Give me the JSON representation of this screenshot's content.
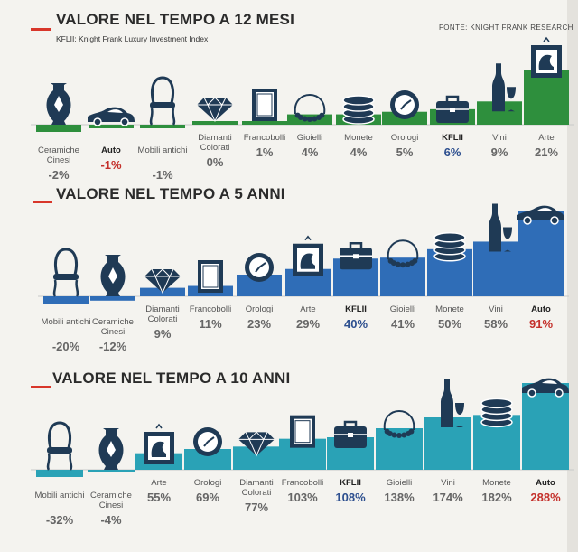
{
  "source": "FONTE: KNIGHT FRANK RESEARCH",
  "colors": {
    "section_12m": "#2e8f3d",
    "section_5y": "#2f6db7",
    "section_10y": "#2aa2b6",
    "icon": "#1f3a55",
    "accent_red": "#c4302b",
    "accent_blue": "#2d4f8f",
    "dash_red": "#d8362a"
  },
  "chart_data": [
    {
      "type": "bar",
      "title": "VALORE NEL TEMPO A 12 MESI",
      "subtitle": "KFLII: Knight Frank Luxury Investment Index",
      "categories": [
        "Ceramiche Cinesi",
        "Auto",
        "Mobili antichi",
        "Diamanti Colorati",
        "Francobolli",
        "Gioielli",
        "Monete",
        "Orologi",
        "KFLII",
        "Vini",
        "Arte"
      ],
      "values": [
        -2,
        -1,
        -1,
        0,
        1,
        4,
        4,
        5,
        6,
        9,
        21
      ],
      "labels": [
        "-2%",
        "-1%",
        "-1%",
        "0%",
        "1%",
        "4%",
        "4%",
        "5%",
        "6%",
        "9%",
        "21%"
      ],
      "icons": [
        "vase-icon",
        "car-icon",
        "chair-icon",
        "diamond-icon",
        "stamp-icon",
        "necklace-icon",
        "coins-icon",
        "watch-icon",
        "briefcase-icon",
        "wine-icon",
        "painting-icon"
      ],
      "highlight": {
        "Auto": "red",
        "KFLII": "blue"
      },
      "bold_categories": [
        "Auto",
        "KFLII"
      ],
      "ylim": [
        -2,
        21
      ]
    },
    {
      "type": "bar",
      "title": "VALORE NEL TEMPO A 5 ANNI",
      "categories": [
        "Mobili antichi",
        "Ceramiche Cinesi",
        "Diamanti Colorati",
        "Francobolli",
        "Orologi",
        "Arte",
        "KFLII",
        "Gioielli",
        "Monete",
        "Vini",
        "Auto"
      ],
      "values": [
        -20,
        -12,
        9,
        11,
        23,
        29,
        40,
        41,
        50,
        58,
        91
      ],
      "labels": [
        "-20%",
        "-12%",
        "9%",
        "11%",
        "23%",
        "29%",
        "40%",
        "41%",
        "50%",
        "58%",
        "91%"
      ],
      "icons": [
        "chair-icon",
        "vase-icon",
        "diamond-icon",
        "stamp-icon",
        "watch-icon",
        "painting-icon",
        "briefcase-icon",
        "necklace-icon",
        "coins-icon",
        "wine-icon",
        "car-icon"
      ],
      "highlight": {
        "Auto": "red",
        "KFLII": "blue"
      },
      "bold_categories": [
        "Auto",
        "KFLII"
      ],
      "ylim": [
        -20,
        91
      ]
    },
    {
      "type": "bar",
      "title": "VALORE NEL TEMPO A 10 ANNI",
      "categories": [
        "Mobili antichi",
        "Ceramiche Cinesi",
        "Arte",
        "Orologi",
        "Diamanti Colorati",
        "Francobolli",
        "KFLII",
        "Gioielli",
        "Vini",
        "Monete",
        "Auto"
      ],
      "values": [
        -32,
        -4,
        55,
        69,
        77,
        103,
        108,
        138,
        174,
        182,
        288
      ],
      "labels": [
        "-32%",
        "-4%",
        "55%",
        "69%",
        "77%",
        "103%",
        "108%",
        "138%",
        "174%",
        "182%",
        "288%"
      ],
      "icons": [
        "chair-icon",
        "vase-icon",
        "painting-icon",
        "watch-icon",
        "diamond-icon",
        "stamp-icon",
        "briefcase-icon",
        "necklace-icon",
        "wine-icon",
        "coins-icon",
        "car-icon"
      ],
      "highlight": {
        "Auto": "red",
        "KFLII": "blue"
      },
      "bold_categories": [
        "Auto",
        "KFLII"
      ],
      "ylim": [
        -32,
        288
      ]
    }
  ]
}
